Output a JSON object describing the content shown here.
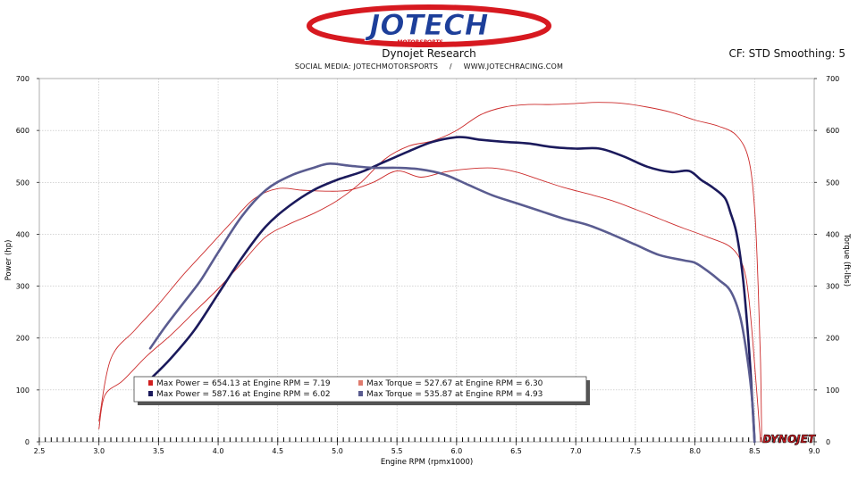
{
  "brand": {
    "logo_text": "JOTECH",
    "logo_subtext": "MOTORSPORTS",
    "watermark": "DYNOJET"
  },
  "header": {
    "title": "Dynojet Research",
    "social": "SOCIAL MEDIA: JOTECHMOTORSPORTS",
    "separator": "/",
    "website": "WWW.JOTECHRACING.COM",
    "correction": "CF: STD Smoothing: 5"
  },
  "colors": {
    "run1": "#cc2b2b",
    "run1_marker": "#d11f1f",
    "run1_torque_marker": "#e07b6e",
    "run2_power": "#1b1a5c",
    "run2_torque": "#5a5c90",
    "grid": "#bdbdbd",
    "legend_bg": "#ffffff"
  },
  "chart_data": {
    "type": "line",
    "xlabel": "Engine RPM (rpmx1000)",
    "ylabel_left": "Power (hp)",
    "ylabel_right": "Torque (ft-lbs)",
    "xlim": [
      2.5,
      9.0
    ],
    "ylim": [
      0,
      700
    ],
    "x_ticks": [
      "2.5",
      "3.0",
      "3.5",
      "4.0",
      "4.5",
      "5.0",
      "5.5",
      "6.0",
      "6.5",
      "7.0",
      "7.5",
      "8.0",
      "8.5",
      "9.0"
    ],
    "y_ticks": [
      "0",
      "100",
      "200",
      "300",
      "400",
      "500",
      "600",
      "700"
    ],
    "grid": true,
    "legend_placement": "bottom-left",
    "legend": [
      {
        "label": "Max Power = 654.13 at Engine RPM = 7.19",
        "marker": "run1_marker"
      },
      {
        "label": "Max Torque = 527.67 at Engine RPM = 6.30",
        "marker": "run1_torque_marker"
      },
      {
        "label": "Max Power = 587.16 at Engine RPM = 6.02",
        "marker": "run2_power"
      },
      {
        "label": "Max Torque = 535.87 at Engine RPM = 4.93",
        "marker": "run2_torque"
      }
    ],
    "series": [
      {
        "color": "run1",
        "width": 0.9,
        "x": [
          3.0,
          3.05,
          3.2,
          3.4,
          3.6,
          3.8,
          4.0,
          4.2,
          4.4,
          4.6,
          4.8,
          5.0,
          5.2,
          5.4,
          5.6,
          5.8,
          6.0,
          6.2,
          6.4,
          6.6,
          6.8,
          7.0,
          7.19,
          7.4,
          7.6,
          7.8,
          8.0,
          8.2,
          8.35,
          8.45,
          8.5,
          8.53,
          8.55,
          8.56
        ],
        "values": [
          25,
          90,
          118,
          165,
          205,
          250,
          295,
          345,
          395,
          420,
          440,
          465,
          500,
          545,
          570,
          580,
          600,
          630,
          645,
          650,
          650,
          652,
          654.13,
          652,
          645,
          635,
          620,
          608,
          590,
          545,
          450,
          300,
          150,
          0
        ]
      },
      {
        "color": "run1",
        "width": 0.9,
        "x": [
          3.0,
          3.1,
          3.3,
          3.5,
          3.7,
          3.9,
          4.1,
          4.3,
          4.5,
          4.7,
          4.9,
          5.1,
          5.3,
          5.5,
          5.7,
          5.9,
          6.1,
          6.3,
          6.5,
          6.7,
          6.9,
          7.1,
          7.3,
          7.5,
          7.7,
          7.9,
          8.1,
          8.3,
          8.4,
          8.45,
          8.5,
          8.55
        ],
        "values": [
          40,
          160,
          215,
          265,
          320,
          370,
          420,
          468,
          488,
          485,
          483,
          485,
          500,
          522,
          510,
          520,
          526,
          527.67,
          520,
          505,
          490,
          478,
          465,
          448,
          430,
          412,
          395,
          375,
          340,
          280,
          150,
          0
        ]
      },
      {
        "color": "run2_power",
        "width": 2.6,
        "x": [
          3.45,
          3.6,
          3.8,
          4.0,
          4.2,
          4.4,
          4.6,
          4.8,
          5.0,
          5.2,
          5.4,
          5.6,
          5.8,
          6.02,
          6.2,
          6.4,
          6.6,
          6.8,
          7.0,
          7.2,
          7.4,
          7.6,
          7.8,
          7.95,
          8.05,
          8.15,
          8.25,
          8.3,
          8.35,
          8.4,
          8.44,
          8.47,
          8.49,
          8.5
        ],
        "values": [
          125,
          160,
          215,
          285,
          355,
          415,
          455,
          485,
          505,
          520,
          540,
          560,
          578,
          587.16,
          582,
          578,
          575,
          568,
          565,
          565,
          550,
          530,
          520,
          522,
          505,
          490,
          470,
          440,
          400,
          320,
          220,
          120,
          40,
          0
        ]
      },
      {
        "color": "run2_torque",
        "width": 2.6,
        "x": [
          3.43,
          3.55,
          3.7,
          3.85,
          4.0,
          4.2,
          4.4,
          4.6,
          4.8,
          4.93,
          5.1,
          5.3,
          5.5,
          5.7,
          5.9,
          6.1,
          6.3,
          6.5,
          6.7,
          6.9,
          7.1,
          7.3,
          7.5,
          7.7,
          7.9,
          8.0,
          8.1,
          8.2,
          8.3,
          8.38,
          8.44,
          8.48,
          8.5
        ],
        "values": [
          180,
          220,
          265,
          310,
          365,
          435,
          485,
          512,
          528,
          535.87,
          532,
          528,
          528,
          525,
          515,
          495,
          475,
          460,
          445,
          430,
          418,
          400,
          380,
          360,
          350,
          345,
          330,
          312,
          290,
          240,
          160,
          80,
          0
        ]
      }
    ]
  }
}
